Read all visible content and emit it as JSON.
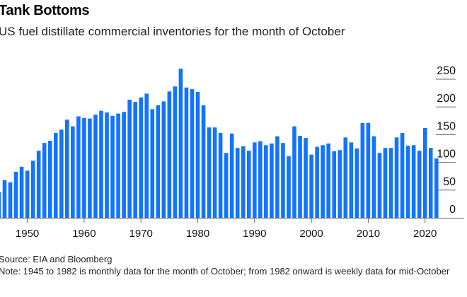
{
  "header": {
    "title": "Tank Bottoms",
    "subtitle": "US fuel distillate commercial inventories for the month of October"
  },
  "footer": {
    "source": "Source: EIA and Bloomberg",
    "note": "Note: 1945 to 1982 is monthly data for the month of October; from 1982 onward is weekly data for mid-October"
  },
  "colors": {
    "bar": "#1273ff",
    "gridline": "#666666",
    "axis": "#666666"
  },
  "chart_data": {
    "type": "bar",
    "title": "Tank Bottoms",
    "subtitle": "US fuel distillate commercial inventories for the month of October",
    "xlabel": "",
    "ylabel": "",
    "ylim": [
      0,
      250
    ],
    "xlim": [
      1945,
      2022
    ],
    "y_ticks": [
      0,
      50,
      100,
      150,
      200,
      250
    ],
    "y_tick_labels": [
      "0",
      "50",
      "100",
      "150",
      "200",
      "250"
    ],
    "x_ticks": [
      1950,
      1960,
      1970,
      1980,
      1990,
      2000,
      2010,
      2020
    ],
    "x_tick_labels": [
      "1950",
      "1960",
      "1970",
      "1980",
      "1990",
      "2000",
      "2010",
      "2020"
    ],
    "y_axis_side": "right",
    "grid": false,
    "legend": "none",
    "categories": [
      1945,
      1946,
      1947,
      1948,
      1949,
      1950,
      1951,
      1952,
      1953,
      1954,
      1955,
      1956,
      1957,
      1958,
      1959,
      1960,
      1961,
      1962,
      1963,
      1964,
      1965,
      1966,
      1967,
      1968,
      1969,
      1970,
      1971,
      1972,
      1973,
      1974,
      1975,
      1976,
      1977,
      1978,
      1979,
      1980,
      1981,
      1982,
      1983,
      1984,
      1985,
      1986,
      1987,
      1988,
      1989,
      1990,
      1991,
      1992,
      1993,
      1994,
      1995,
      1996,
      1997,
      1998,
      1999,
      2000,
      2001,
      2002,
      2003,
      2004,
      2005,
      2006,
      2007,
      2008,
      2009,
      2010,
      2011,
      2012,
      2013,
      2014,
      2015,
      2016,
      2017,
      2018,
      2019,
      2020,
      2021,
      2022
    ],
    "values": [
      46,
      68,
      64,
      83,
      92,
      85,
      103,
      121,
      135,
      139,
      153,
      159,
      177,
      165,
      183,
      180,
      179,
      186,
      193,
      190,
      184,
      188,
      191,
      213,
      209,
      217,
      224,
      196,
      203,
      210,
      228,
      237,
      269,
      235,
      232,
      227,
      203,
      163,
      163,
      153,
      117,
      152,
      126,
      129,
      121,
      136,
      138,
      131,
      134,
      147,
      135,
      111,
      165,
      148,
      144,
      114,
      128,
      131,
      134,
      120,
      122,
      145,
      136,
      125,
      171,
      171,
      147,
      117,
      126,
      126,
      145,
      153,
      130,
      131,
      121,
      162,
      126,
      107
    ],
    "source": "Source: EIA and Bloomberg",
    "note": "Note: 1945 to 1982 is monthly data for the month of October; from 1982 onward is weekly data for mid-October"
  }
}
